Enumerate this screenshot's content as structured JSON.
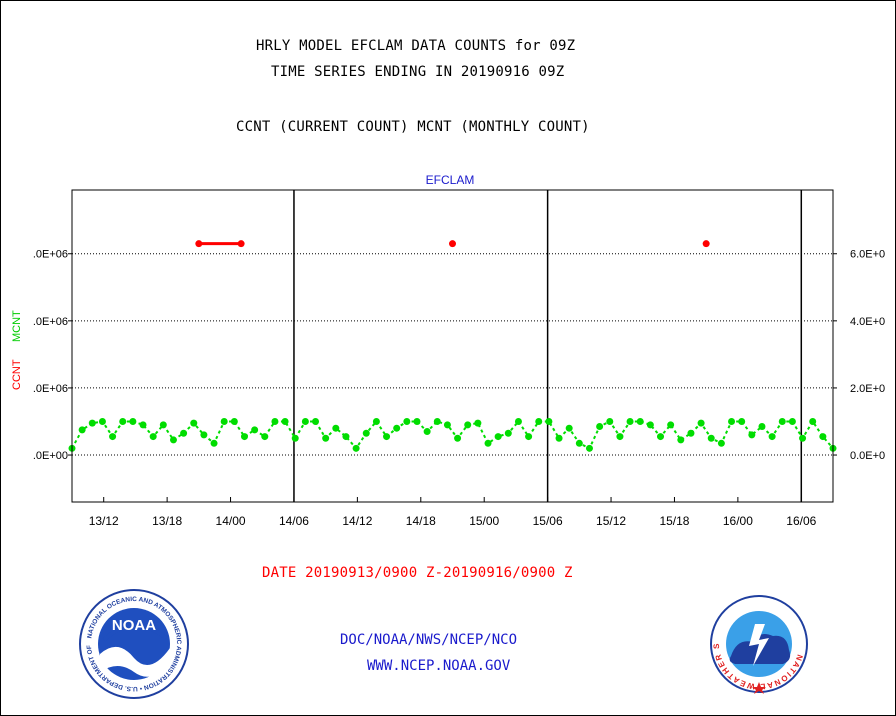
{
  "header": {
    "title1": "HRLY MODEL EFCLAM DATA COUNTS for 09Z",
    "title2": "TIME SERIES ENDING IN 20190916 09Z",
    "subtitle": "CCNT (CURRENT COUNT) MCNT (MONTHLY COUNT)"
  },
  "footer": {
    "date_range": "DATE 20190913/0900 Z-20190916/0900 Z",
    "org_link": "DOC/NOAA/NWS/NCEP/NCO",
    "site_link": "WWW.NCEP.NOAA.GOV"
  },
  "logos": {
    "noaa_text": "NOAA",
    "noaa_ring": "NATIONAL OCEANIC AND ATMOSPHERIC ADMINISTRATION • U.S. DEPARTMENT OF COMMERCE •",
    "nws_ring": "NATIONAL WEATHER SERVICE"
  },
  "colors": {
    "ccnt": "#ff0000",
    "mcnt": "#00dd00",
    "title": "#000000",
    "link": "#1a1acc",
    "panel_label": "#1a1acc"
  },
  "chart_data": {
    "type": "line",
    "title": "EFCLAM",
    "ylabel_left": [
      "CCNT",
      "MCNT"
    ],
    "y_ticks_left": [
      ".0E+00",
      ".0E+06",
      ".0E+06",
      ".0E+06"
    ],
    "y_ticks_right": [
      "0.0E+0",
      "2.0E+0",
      "4.0E+0",
      "6.0E+0"
    ],
    "y_tick_values": [
      0,
      2000000,
      4000000,
      6000000
    ],
    "ylim": [
      -1400000,
      7900000
    ],
    "x_ticks": [
      "13/12",
      "13/18",
      "14/00",
      "14/06",
      "14/12",
      "14/18",
      "15/00",
      "15/06",
      "15/12",
      "15/18",
      "16/00",
      "16/06"
    ],
    "x_tick_hours": [
      3,
      9,
      15,
      21,
      27,
      33,
      39,
      45,
      51,
      57,
      63,
      69
    ],
    "xlim_hours": [
      0,
      72
    ],
    "day_boundaries_hours": [
      21,
      45,
      69
    ],
    "grid": true,
    "series": [
      {
        "name": "CCNT",
        "color": "#ff0000",
        "points": [
          [
            12,
            6300000
          ],
          [
            16,
            6300000
          ],
          [
            36,
            6300000
          ],
          [
            60,
            6300000
          ]
        ],
        "connect_pairs": [
          [
            0,
            1
          ]
        ]
      },
      {
        "name": "MCNT",
        "color": "#00dd00",
        "values": [
          200000,
          750000,
          950000,
          1000000,
          550000,
          1000000,
          1000000,
          900000,
          550000,
          900000,
          450000,
          650000,
          950000,
          600000,
          350000,
          1000000,
          1000000,
          550000,
          750000,
          550000,
          1000000,
          1000000,
          500000,
          1000000,
          1000000,
          500000,
          800000,
          550000,
          200000,
          650000,
          1000000,
          550000,
          800000,
          1000000,
          1000000,
          700000,
          1000000,
          900000,
          500000,
          900000,
          950000,
          350000,
          550000,
          650000,
          1000000,
          550000,
          1000000,
          1000000,
          500000,
          800000,
          350000,
          200000,
          850000,
          1000000,
          550000,
          1000000,
          1000000,
          900000,
          550000,
          900000,
          450000,
          650000,
          950000,
          500000,
          350000,
          1000000,
          1000000,
          600000,
          850000,
          550000,
          1000000,
          1000000,
          500000,
          1000000,
          550000,
          200000
        ]
      }
    ]
  }
}
